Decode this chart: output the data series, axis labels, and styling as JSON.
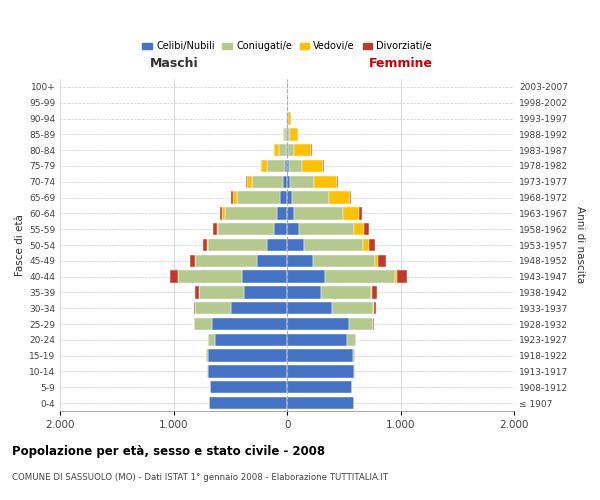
{
  "age_groups": [
    "100+",
    "95-99",
    "90-94",
    "85-89",
    "80-84",
    "75-79",
    "70-74",
    "65-69",
    "60-64",
    "55-59",
    "50-54",
    "45-49",
    "40-44",
    "35-39",
    "30-34",
    "25-29",
    "20-24",
    "15-19",
    "10-14",
    "5-9",
    "0-4"
  ],
  "birth_years": [
    "≤ 1907",
    "1908-1912",
    "1913-1917",
    "1918-1922",
    "1923-1927",
    "1928-1932",
    "1933-1937",
    "1938-1942",
    "1943-1947",
    "1948-1952",
    "1953-1957",
    "1958-1962",
    "1963-1967",
    "1968-1972",
    "1973-1977",
    "1978-1982",
    "1983-1987",
    "1988-1992",
    "1993-1997",
    "1998-2002",
    "2003-2007"
  ],
  "males": {
    "celibi": [
      2,
      2,
      3,
      8,
      12,
      20,
      40,
      65,
      90,
      120,
      175,
      270,
      400,
      380,
      500,
      660,
      640,
      700,
      700,
      680,
      690
    ],
    "coniugati": [
      1,
      2,
      6,
      18,
      65,
      160,
      270,
      380,
      460,
      490,
      520,
      540,
      560,
      400,
      310,
      160,
      55,
      12,
      3,
      1,
      0
    ],
    "vedovi": [
      0,
      0,
      3,
      12,
      40,
      50,
      45,
      35,
      22,
      12,
      8,
      5,
      3,
      2,
      1,
      0,
      0,
      0,
      0,
      0,
      0
    ],
    "divorziati": [
      0,
      0,
      0,
      1,
      2,
      4,
      8,
      12,
      18,
      30,
      35,
      45,
      70,
      35,
      12,
      4,
      1,
      0,
      0,
      0,
      0
    ]
  },
  "females": {
    "nubili": [
      2,
      2,
      3,
      5,
      8,
      14,
      28,
      45,
      60,
      100,
      150,
      230,
      330,
      300,
      390,
      540,
      530,
      580,
      590,
      570,
      590
    ],
    "coniugate": [
      1,
      2,
      7,
      22,
      55,
      120,
      210,
      320,
      430,
      490,
      520,
      545,
      620,
      440,
      370,
      215,
      75,
      18,
      4,
      1,
      0
    ],
    "vedove": [
      1,
      4,
      20,
      70,
      150,
      185,
      200,
      185,
      140,
      90,
      50,
      28,
      14,
      7,
      3,
      1,
      0,
      0,
      0,
      0,
      0
    ],
    "divorziate": [
      0,
      0,
      0,
      1,
      3,
      6,
      10,
      16,
      25,
      40,
      50,
      65,
      95,
      45,
      17,
      6,
      2,
      0,
      0,
      0,
      0
    ]
  },
  "colors": {
    "celibi": "#4472c4",
    "coniugati": "#b5c98e",
    "vedovi": "#ffc000",
    "divorziati": "#c0392b"
  },
  "xlim": 2000,
  "title": "Popolazione per età, sesso e stato civile - 2008",
  "subtitle": "COMUNE DI SASSUOLO (MO) - Dati ISTAT 1° gennaio 2008 - Elaborazione TUTTITALIA.IT",
  "ylabel_left": "Fasce di età",
  "ylabel_right": "Anni di nascita",
  "xlabel_left": "Maschi",
  "xlabel_right": "Femmine",
  "bg_color": "#ffffff",
  "grid_color": "#cccccc"
}
